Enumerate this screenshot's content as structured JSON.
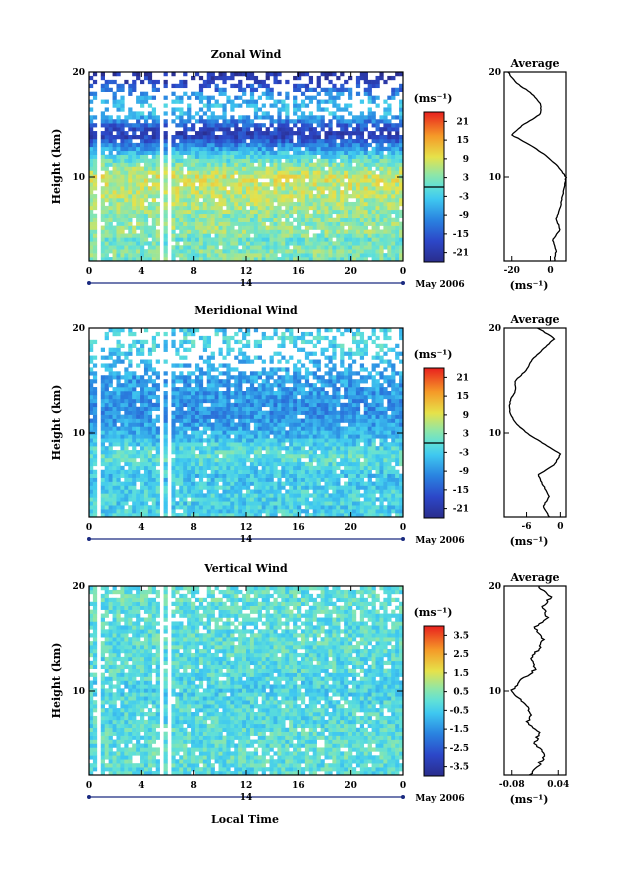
{
  "common": {
    "xlabel": "Local Time",
    "date_label": "May 2006",
    "day_label": "14",
    "cbar_unit_label": "(ms⁻¹)",
    "profile_xlabel": "(ms⁻¹)",
    "profile_title": "Average",
    "ylabel": "Height (km)"
  },
  "chart_data": [
    {
      "type": "heatmap",
      "title": "Zonal Wind",
      "xlabel": "Local Time",
      "ylabel": "Height (km)",
      "x_ticks": [
        "0",
        "4",
        "8",
        "12",
        "16",
        "20",
        "0"
      ],
      "xlim": [
        0,
        24
      ],
      "y_ticks": [
        "20",
        "10"
      ],
      "ylim": [
        2,
        20
      ],
      "colorbar": {
        "label": "(ms⁻¹)",
        "ticks": [
          "21",
          "15",
          "9",
          "3",
          "-3",
          "-9",
          "-15",
          "-21"
        ],
        "range": [
          -24,
          24
        ]
      },
      "data_gaps_hours": [
        [
          0.5,
          0.8
        ],
        [
          5.3,
          5.7
        ],
        [
          6.1,
          6.3
        ]
      ],
      "profile": {
        "title": "Average",
        "xlabel": "(ms⁻¹)",
        "x_ticks": [
          "-20",
          "0"
        ],
        "xlim": [
          -24,
          8
        ],
        "y_ticks": [
          "20",
          "10"
        ],
        "heights_km": [
          2,
          3,
          4,
          5,
          6,
          7,
          8,
          9,
          10,
          11,
          12,
          13,
          14,
          15,
          16,
          17,
          18,
          19,
          20
        ],
        "values": [
          2,
          3,
          1,
          5,
          3,
          5,
          6,
          7,
          8,
          4,
          -2,
          -10,
          -20,
          -14,
          -5,
          -5,
          -10,
          -18,
          -22
        ]
      }
    },
    {
      "type": "heatmap",
      "title": "Meridional Wind",
      "xlabel": "Local Time",
      "ylabel": "Height (km)",
      "x_ticks": [
        "0",
        "4",
        "8",
        "12",
        "16",
        "20",
        "0"
      ],
      "xlim": [
        0,
        24
      ],
      "y_ticks": [
        "20",
        "10"
      ],
      "ylim": [
        2,
        20
      ],
      "colorbar": {
        "label": "(ms⁻¹)",
        "ticks": [
          "21",
          "15",
          "9",
          "3",
          "-3",
          "-9",
          "-15",
          "-21"
        ],
        "range": [
          -24,
          24
        ]
      },
      "data_gaps_hours": [
        [
          0.5,
          0.8
        ],
        [
          5.3,
          5.7
        ],
        [
          6.1,
          6.3
        ]
      ],
      "profile": {
        "title": "Average",
        "xlabel": "(ms⁻¹)",
        "x_ticks": [
          "-6",
          "0"
        ],
        "xlim": [
          -10,
          1
        ],
        "y_ticks": [
          "20",
          "10"
        ],
        "heights_km": [
          2,
          3,
          4,
          5,
          6,
          7,
          8,
          9,
          10,
          11,
          12,
          13,
          14,
          15,
          16,
          17,
          18,
          19,
          20
        ],
        "values": [
          -2,
          -3,
          -2,
          -3,
          -4,
          -1,
          0,
          -3,
          -6,
          -8,
          -9,
          -9,
          -8,
          -8,
          -6,
          -5,
          -3,
          -1,
          -4
        ]
      }
    },
    {
      "type": "heatmap",
      "title": "Vertical Wind",
      "xlabel": "Local Time",
      "ylabel": "Height (km)",
      "x_ticks": [
        "0",
        "4",
        "8",
        "12",
        "16",
        "20",
        "0"
      ],
      "xlim": [
        0,
        24
      ],
      "y_ticks": [
        "20",
        "10"
      ],
      "ylim": [
        2,
        20
      ],
      "colorbar": {
        "label": "(ms⁻¹)",
        "ticks": [
          "3.5",
          "2.5",
          "1.5",
          "0.5",
          "-0.5",
          "-1.5",
          "-2.5",
          "-3.5"
        ],
        "range": [
          -4,
          4
        ]
      },
      "data_gaps_hours": [
        [
          0.5,
          0.8
        ],
        [
          5.3,
          5.7
        ],
        [
          6.1,
          6.3
        ]
      ],
      "profile": {
        "title": "Average",
        "xlabel": "(ms⁻¹)",
        "x_ticks": [
          "-0.08",
          "0.04"
        ],
        "xlim": [
          -0.1,
          0.06
        ],
        "y_ticks": [
          "20",
          "10"
        ],
        "heights_km": [
          2,
          3,
          4,
          5,
          6,
          7,
          8,
          9,
          10,
          11,
          12,
          13,
          14,
          15,
          16,
          17,
          18,
          19,
          20
        ],
        "values": [
          -0.03,
          -0.01,
          0.01,
          -0.02,
          -0.01,
          -0.04,
          -0.03,
          -0.05,
          -0.08,
          -0.06,
          -0.02,
          -0.03,
          -0.01,
          0.0,
          -0.02,
          0.01,
          0.0,
          0.02,
          -0.01
        ]
      }
    }
  ]
}
